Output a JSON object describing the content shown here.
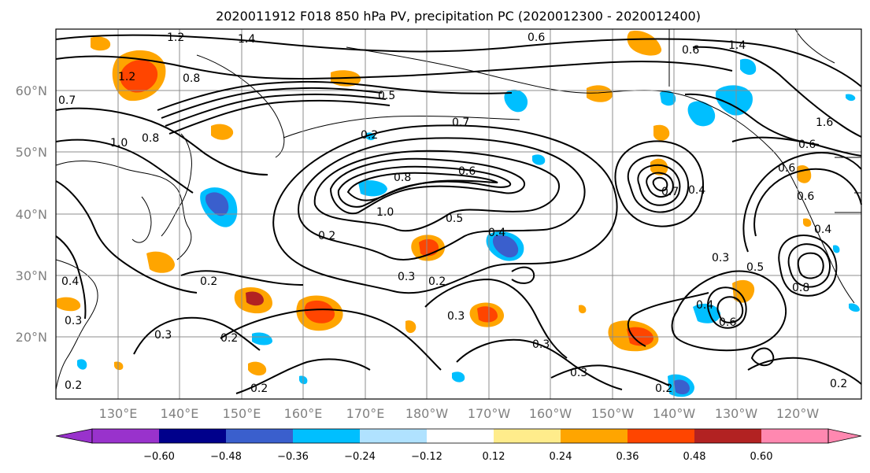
{
  "title": "2020011912 F018 850 hPa PV, precipitation PC (2020012300 - 2020012400)",
  "map": {
    "lat_labels": [
      "60°N",
      "50°N",
      "40°N",
      "30°N",
      "20°N"
    ],
    "lon_labels": [
      "130°E",
      "140°E",
      "150°E",
      "160°E",
      "170°E",
      "180°W",
      "170°W",
      "160°W",
      "150°W",
      "140°W",
      "130°W",
      "120°W"
    ]
  },
  "colorbar": {
    "tick_labels": [
      "−0.60",
      "−0.48",
      "−0.36",
      "−0.24",
      "−0.12",
      "0.12",
      "0.24",
      "0.36",
      "0.48",
      "0.60"
    ],
    "colors": [
      "#9932cc",
      "#00008b",
      "#3a5fcd",
      "#00bfff",
      "#b0e2ff",
      "#ffffff",
      "#ffec8b",
      "#ffa500",
      "#ff4500",
      "#b22222",
      "#ff88b0"
    ]
  },
  "contour_labels": [
    "1.2",
    "1.4",
    "0.6",
    "1.4",
    "0.8",
    "1.2",
    "0.7",
    "0.6",
    "1.0",
    "0.8",
    "0.5",
    "0.2",
    "0.7",
    "0.8",
    "1.0",
    "0.5",
    "0.4",
    "0.3",
    "0.2",
    "0.6",
    "0.7",
    "0.4",
    "1.6",
    "0.6",
    "0.6",
    "0.4",
    "0.3",
    "0.5",
    "0.8",
    "0.6",
    "0.4",
    "0.2",
    "0.3",
    "0.2",
    "0.3",
    "0.3",
    "0.2",
    "0.4",
    "0.3",
    "0.2",
    "0.3",
    "0.2",
    "0.2",
    "0.6",
    "0.2"
  ]
}
